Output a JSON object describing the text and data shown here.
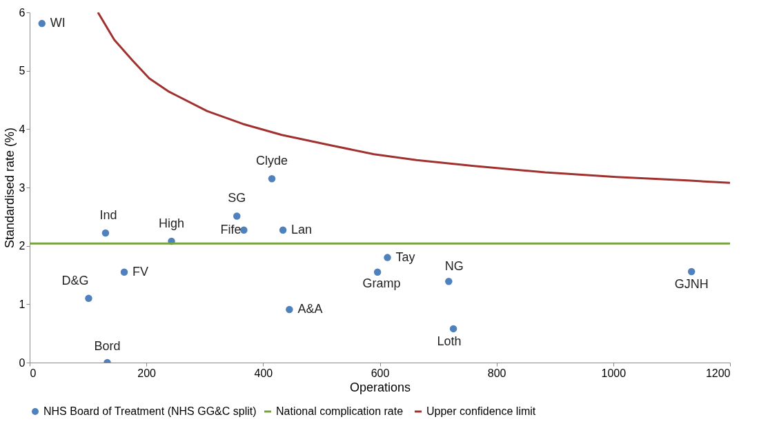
{
  "chart_data": {
    "type": "scatter",
    "xlabel": "Operations",
    "ylabel": "Standardised rate (%)",
    "xlim": [
      0,
      1200
    ],
    "xticks": [
      0,
      200,
      400,
      600,
      800,
      1000,
      1200
    ],
    "ylim": [
      0,
      6
    ],
    "yticks": [
      0,
      1,
      2,
      3,
      4,
      5,
      6
    ],
    "grid": false,
    "legend": "bottom",
    "series": [
      {
        "name": "NHS Board of Treatment (NHS GG&C split)",
        "marker": "circle",
        "color": "#4f81bd",
        "x": [
          21,
          130,
          243,
          101,
          162,
          133,
          355,
          367,
          415,
          434,
          445,
          613,
          596,
          718,
          726,
          1134
        ],
        "values": [
          5.81,
          2.22,
          2.08,
          1.1,
          1.55,
          0.0,
          2.51,
          2.27,
          3.15,
          2.27,
          0.91,
          1.8,
          1.55,
          1.39,
          0.58,
          1.56
        ]
      },
      {
        "name": "Upper confidence limit",
        "type": "line",
        "color": "#a0312f",
        "x": [
          117,
          145,
          176,
          205,
          239,
          304,
          365,
          432,
          517,
          590,
          663,
          761,
          883,
          1005,
          1127,
          1200
        ],
        "values": [
          6.0,
          5.53,
          5.18,
          4.87,
          4.64,
          4.31,
          4.09,
          3.9,
          3.72,
          3.57,
          3.47,
          3.37,
          3.26,
          3.18,
          3.12,
          3.08
        ]
      }
    ],
    "ref_lines": [
      {
        "axis": "y",
        "value": 2.04,
        "label": "National complication rate",
        "color": "#77a33b"
      }
    ],
    "annotations": [
      {
        "text": "WI",
        "x": 21,
        "y": 5.81
      },
      {
        "text": "Ind",
        "x": 130,
        "y": 2.22
      },
      {
        "text": "High",
        "x": 243,
        "y": 2.08
      },
      {
        "text": "D&G",
        "x": 101,
        "y": 1.1
      },
      {
        "text": "FV",
        "x": 162,
        "y": 1.55
      },
      {
        "text": "Bord",
        "x": 133,
        "y": 0.0
      },
      {
        "text": "SG",
        "x": 355,
        "y": 2.51
      },
      {
        "text": "Fife",
        "x": 367,
        "y": 2.27
      },
      {
        "text": "Clyde",
        "x": 415,
        "y": 3.15
      },
      {
        "text": "Lan",
        "x": 434,
        "y": 2.27
      },
      {
        "text": "A&A",
        "x": 445,
        "y": 0.91
      },
      {
        "text": "Tay",
        "x": 613,
        "y": 1.8
      },
      {
        "text": "Gramp",
        "x": 596,
        "y": 1.55
      },
      {
        "text": "NG",
        "x": 718,
        "y": 1.39
      },
      {
        "text": "Loth",
        "x": 726,
        "y": 0.58
      },
      {
        "text": "GJNH",
        "x": 1134,
        "y": 1.56
      }
    ]
  }
}
